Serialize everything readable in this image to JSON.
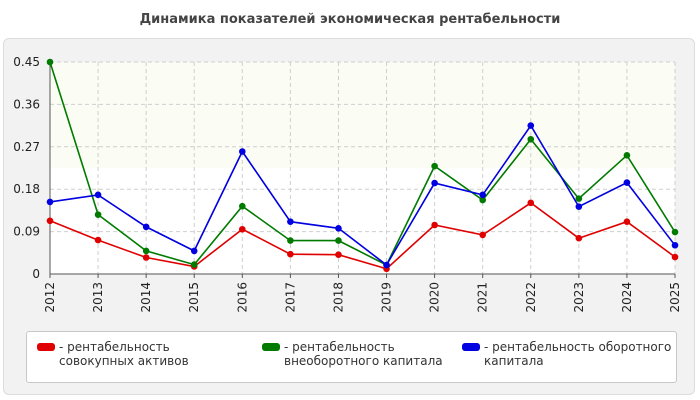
{
  "title": "Динамика показателей экономическая рентабельности",
  "chart_data": {
    "type": "line",
    "x": [
      "2012",
      "2013",
      "2014",
      "2015",
      "2016",
      "2017",
      "2018",
      "2019",
      "2020",
      "2021",
      "2022",
      "2023",
      "2024",
      "2025"
    ],
    "ylim": [
      0,
      0.45
    ],
    "yticks": [
      "0",
      "0.09",
      "0.18",
      "0.27",
      "0.36",
      "0.45"
    ],
    "grid": true,
    "legend_position": "bottom",
    "series": [
      {
        "name": "- рентабельность совокупных активов",
        "color": "#e00000",
        "values": [
          0.113,
          0.072,
          0.035,
          0.016,
          0.095,
          0.042,
          0.041,
          0.011,
          0.104,
          0.083,
          0.151,
          0.076,
          0.111,
          0.036
        ]
      },
      {
        "name": "- рентабельность внеоборотного капитала",
        "color": "#007b00",
        "values": [
          0.45,
          0.126,
          0.049,
          0.02,
          0.144,
          0.071,
          0.071,
          0.019,
          0.229,
          0.157,
          0.286,
          0.16,
          0.252,
          0.089
        ]
      },
      {
        "name": "- рентабельность оборотного капитала",
        "color": "#0000e0",
        "values": [
          0.153,
          0.168,
          0.1,
          0.049,
          0.26,
          0.111,
          0.097,
          0.019,
          0.193,
          0.168,
          0.315,
          0.143,
          0.194,
          0.061
        ]
      }
    ]
  }
}
